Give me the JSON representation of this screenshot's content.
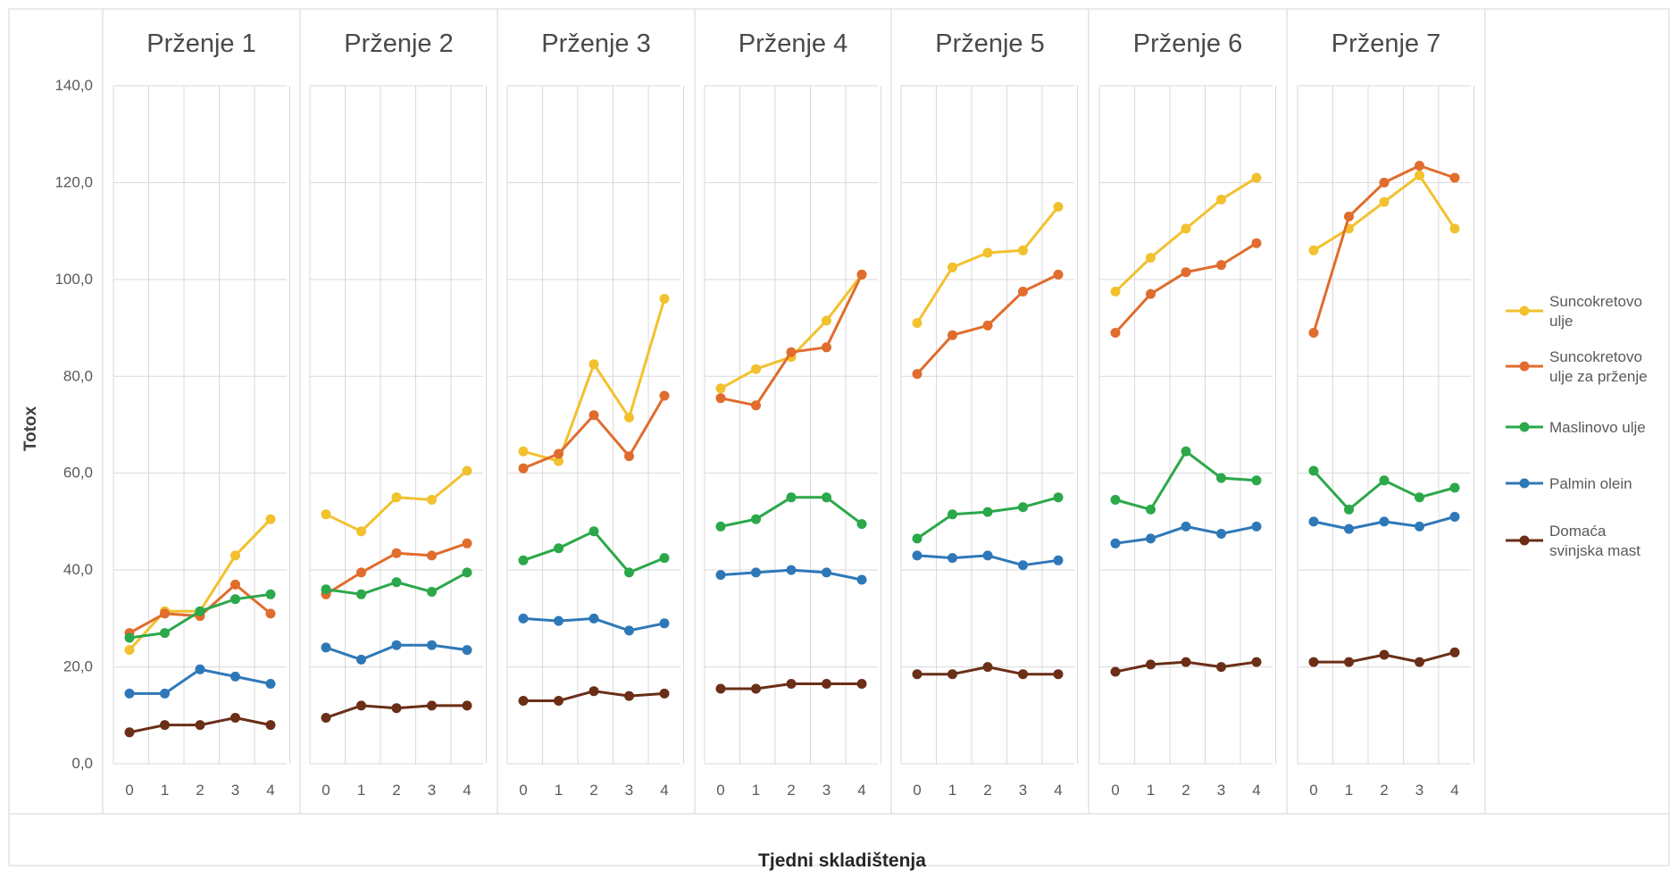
{
  "chart_data": {
    "type": "line",
    "ylabel": "Totox",
    "xlabel": "Tjedni skladištenja",
    "ylim": [
      0,
      140
    ],
    "yticks": [
      "0,0",
      "20,0",
      "40,0",
      "60,0",
      "80,0",
      "100,0",
      "120,0",
      "140,0"
    ],
    "x": [
      0,
      1,
      2,
      3,
      4
    ],
    "x_tick_labels": [
      "0",
      "1",
      "2",
      "3",
      "4"
    ],
    "grid": "on",
    "legend_position": "right",
    "panels": [
      "Prženje 1",
      "Prženje 2",
      "Prženje 3",
      "Prženje 4",
      "Prženje 5",
      "Prženje 6",
      "Prženje 7"
    ],
    "series": [
      {
        "name": "Suncokretovo ulje",
        "legend_lines": [
          "Suncokretovo",
          "ulje"
        ],
        "color": "#F2C12E",
        "values": [
          [
            23.5,
            31.5,
            31.5,
            43,
            50.5
          ],
          [
            51.5,
            48,
            55,
            54.5,
            60.5
          ],
          [
            64.5,
            62.5,
            82.5,
            71.5,
            96
          ],
          [
            77.5,
            81.5,
            84,
            91.5,
            101
          ],
          [
            91,
            102.5,
            105.5,
            106,
            115
          ],
          [
            97.5,
            104.5,
            110.5,
            116.5,
            121
          ],
          [
            106,
            110.5,
            116,
            121.5,
            110.5
          ]
        ]
      },
      {
        "name": "Suncokretovo ulje za prženje",
        "legend_lines": [
          "Suncokretovo",
          "ulje za prženje"
        ],
        "color": "#E06C2D",
        "values": [
          [
            27,
            31,
            30.5,
            37,
            31
          ],
          [
            35,
            39.5,
            43.5,
            43,
            45.5
          ],
          [
            61,
            64,
            72,
            63.5,
            76
          ],
          [
            75.5,
            74,
            85,
            86,
            101
          ],
          [
            80.5,
            88.5,
            90.5,
            97.5,
            101
          ],
          [
            89,
            97,
            101.5,
            103,
            107.5
          ],
          [
            89,
            113,
            120,
            123.5,
            121
          ]
        ]
      },
      {
        "name": "Maslinovo ulje",
        "legend_lines": [
          "Maslinovo ulje"
        ],
        "color": "#2BA84A",
        "values": [
          [
            26,
            27,
            31.5,
            34,
            35
          ],
          [
            36,
            35,
            37.5,
            35.5,
            39.5
          ],
          [
            42,
            44.5,
            48,
            39.5,
            42.5
          ],
          [
            49,
            50.5,
            55,
            55,
            49.5
          ],
          [
            46.5,
            51.5,
            52,
            53,
            55
          ],
          [
            54.5,
            52.5,
            64.5,
            59,
            58.5
          ],
          [
            60.5,
            52.5,
            58.5,
            55,
            57
          ]
        ]
      },
      {
        "name": "Palmin olein",
        "legend_lines": [
          "Palmin olein"
        ],
        "color": "#2F78B8",
        "values": [
          [
            14.5,
            14.5,
            19.5,
            18,
            16.5
          ],
          [
            24,
            21.5,
            24.5,
            24.5,
            23.5
          ],
          [
            30,
            29.5,
            30,
            27.5,
            29
          ],
          [
            39,
            39.5,
            40,
            39.5,
            38
          ],
          [
            43,
            42.5,
            43,
            41,
            42
          ],
          [
            45.5,
            46.5,
            49,
            47.5,
            49
          ],
          [
            50,
            48.5,
            50,
            49,
            51
          ]
        ]
      },
      {
        "name": "Domaća svinjska mast",
        "legend_lines": [
          "Domaća",
          "svinjska mast"
        ],
        "color": "#6B2E17",
        "values": [
          [
            6.5,
            8,
            8,
            9.5,
            8
          ],
          [
            9.5,
            12,
            11.5,
            12,
            12
          ],
          [
            13,
            13,
            15,
            14,
            14.5
          ],
          [
            15.5,
            15.5,
            16.5,
            16.5,
            16.5
          ],
          [
            18.5,
            18.5,
            20,
            18.5,
            18.5
          ],
          [
            19,
            20.5,
            21,
            20,
            21
          ],
          [
            21,
            21,
            22.5,
            21,
            23
          ]
        ]
      }
    ]
  }
}
